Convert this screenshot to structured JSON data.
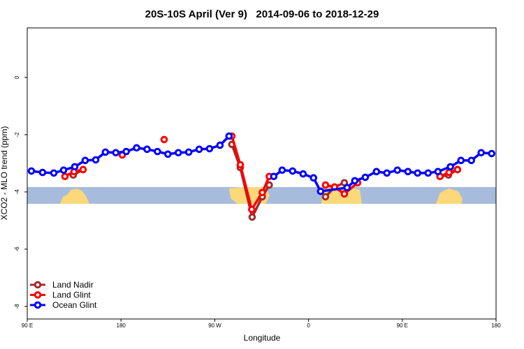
{
  "chart_data": {
    "type": "line",
    "title": "20S-10S April (Ver 9)   2014-09-06 to 2018-12-29",
    "x_label": "Longitude",
    "y_label": "XCO2 - MLO trend (ppm)",
    "xlim": [
      90,
      540
    ],
    "xticks": [
      {
        "value": 90,
        "label": "90 E"
      },
      180,
      {
        "value": 270,
        "label": "90 W"
      },
      {
        "value": 360,
        "label": "0"
      },
      {
        "value": 450,
        "label": "90 E"
      },
      {
        "value": 540,
        "label": "180"
      }
    ],
    "ylim": [
      -8.44,
      1.73
    ],
    "yticks": [
      0,
      -2,
      -4,
      -6,
      -8
    ],
    "legend": "bottom-left",
    "series": [
      {
        "name": "Land Nadir",
        "color": "#a52a2a",
        "x": [
          134.2,
          143.6,
          null,
          286.4,
          294.5,
          305.9,
          315.6,
          322.3,
          null,
          376.3,
          385,
          394.4,
          null,
          486.2,
          494.3,
          503
        ],
        "values": [
          -3.41,
          -3.22,
          null,
          -2.34,
          -3.15,
          -4.88,
          -4.17,
          -3.76,
          null,
          -4.17,
          -3.83,
          -3.68,
          null,
          -3.46,
          -3.41,
          -3.22
        ]
      },
      {
        "name": "Land Glint",
        "color": "#ff0000",
        "x": [
          126.2,
          134.9,
          143.6,
          null,
          181.2,
          null,
          221.4,
          null,
          286.4,
          294.5,
          305.5,
          315.6,
          322.3,
          null,
          376.3,
          385,
          394.4,
          407.1,
          null,
          486.2,
          494.9,
          503
        ],
        "values": [
          -3.46,
          -3.29,
          -3.22,
          null,
          -2.71,
          null,
          -2.17,
          null,
          -2.05,
          -3.05,
          -4.61,
          -4.02,
          -3.46,
          null,
          -3.76,
          -3.83,
          -4.07,
          -3.68,
          null,
          -3.46,
          -3.32,
          -3.22
        ]
      },
      {
        "name": "Ocean Glint",
        "color": "#0000ff",
        "x": [
          94,
          104.7,
          115.5,
          124.9,
          135.6,
          145.6,
          155.7,
          165,
          175,
          185,
          195,
          205,
          215,
          225,
          235,
          245,
          255,
          265,
          275,
          283.7,
          null,
          326.6,
          334.7,
          344.7,
          354.8,
          364.8,
          371.6,
          397,
          404.4,
          414.5,
          425.2,
          435.2,
          445.3,
          455.4,
          464.7,
          474.8,
          484.2,
          496.2,
          506.3,
          516.3,
          525.7,
          535.8
        ],
        "values": [
          -3.27,
          -3.32,
          -3.34,
          -3.24,
          -3.12,
          -2.9,
          -2.88,
          -2.61,
          -2.63,
          -2.59,
          -2.46,
          -2.51,
          -2.59,
          -2.68,
          -2.63,
          -2.61,
          -2.51,
          -2.49,
          -2.37,
          -2.05,
          null,
          -3.46,
          -3.24,
          -3.27,
          -3.37,
          -3.51,
          -3.98,
          -3.85,
          -3.61,
          -3.49,
          -3.29,
          -3.34,
          -3.24,
          -3.29,
          -3.34,
          -3.34,
          -3.29,
          -3.12,
          -2.9,
          -2.9,
          -2.63,
          -2.66
        ]
      }
    ]
  }
}
